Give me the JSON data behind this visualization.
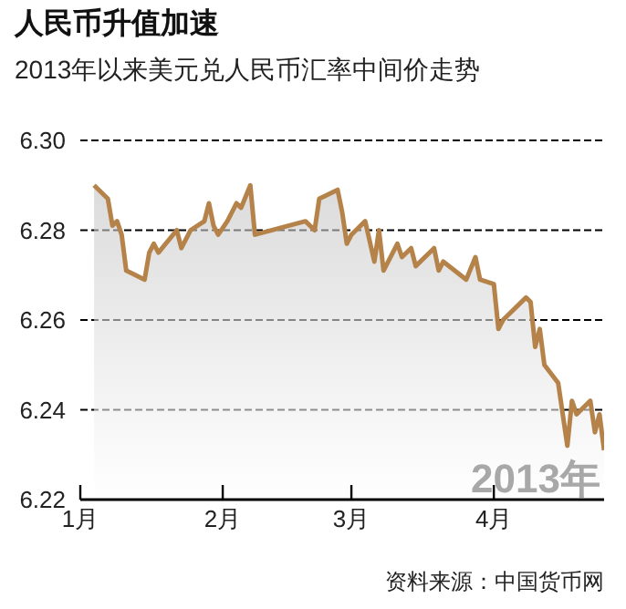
{
  "chart_data": {
    "type": "area",
    "title": "人民币升值加速",
    "subtitle": "2013年以来美元兑人民币汇率中间价走势",
    "x": [
      "2013-01-04",
      "2013-01-07",
      "2013-01-08",
      "2013-01-09",
      "2013-01-10",
      "2013-01-11",
      "2013-01-15",
      "2013-01-16",
      "2013-01-17",
      "2013-01-18",
      "2013-01-22",
      "2013-01-23",
      "2013-01-25",
      "2013-01-28",
      "2013-01-29",
      "2013-01-30",
      "2013-01-31",
      "2013-02-02",
      "2013-02-04",
      "2013-02-05",
      "2013-02-07",
      "2013-02-08",
      "2013-02-19",
      "2013-02-21",
      "2013-02-22",
      "2013-02-26",
      "2013-02-27",
      "2013-02-28",
      "2013-03-01",
      "2013-03-04",
      "2013-03-06",
      "2013-03-07",
      "2013-03-08",
      "2013-03-11",
      "2013-03-12",
      "2013-03-14",
      "2013-03-15",
      "2013-03-19",
      "2013-03-20",
      "2013-03-21",
      "2013-03-26",
      "2013-03-28",
      "2013-03-29",
      "2013-04-01",
      "2013-04-02",
      "2013-04-03",
      "2013-04-08",
      "2013-04-09",
      "2013-04-10",
      "2013-04-11",
      "2013-04-12",
      "2013-04-15",
      "2013-04-17",
      "2013-04-18",
      "2013-04-19",
      "2013-04-22",
      "2013-04-23",
      "2013-04-24",
      "2013-04-25"
    ],
    "series": [
      {
        "color": "#b5834a",
        "values": [
          6.29,
          6.287,
          6.281,
          6.282,
          6.279,
          6.271,
          6.269,
          6.275,
          6.277,
          6.275,
          6.28,
          6.276,
          6.28,
          6.282,
          6.286,
          6.281,
          6.279,
          6.282,
          6.286,
          6.285,
          6.29,
          6.279,
          6.282,
          6.28,
          6.287,
          6.289,
          6.284,
          6.277,
          6.279,
          6.282,
          6.273,
          6.28,
          6.271,
          6.277,
          6.274,
          6.276,
          6.272,
          6.276,
          6.271,
          6.273,
          6.269,
          6.274,
          6.269,
          6.268,
          6.258,
          6.26,
          6.265,
          6.264,
          6.254,
          6.258,
          6.25,
          6.246,
          6.232,
          6.242,
          6.239,
          6.242,
          6.235,
          6.239,
          6.231
        ]
      }
    ],
    "xlim": [
      "2013-01-01",
      "2013-04-25"
    ],
    "xticks": [
      {
        "value": "2013-01-01",
        "label": "1月"
      },
      {
        "value": "2013-02-01",
        "label": "2月"
      },
      {
        "value": "2013-03-01",
        "label": "3月"
      },
      {
        "value": "2013-04-01",
        "label": "4月"
      }
    ],
    "ylim": [
      6.22,
      6.3
    ],
    "yticks": [
      {
        "value": 6.22,
        "label": "6.22"
      },
      {
        "value": 6.24,
        "label": "6.24"
      },
      {
        "value": 6.26,
        "label": "6.26"
      },
      {
        "value": 6.28,
        "label": "6.28"
      },
      {
        "value": 6.3,
        "label": "6.30"
      }
    ],
    "grid": "y",
    "marker": "none",
    "line_style": "solid",
    "annotations": [
      "2013年",
      "资料来源：中国货币网"
    ]
  }
}
